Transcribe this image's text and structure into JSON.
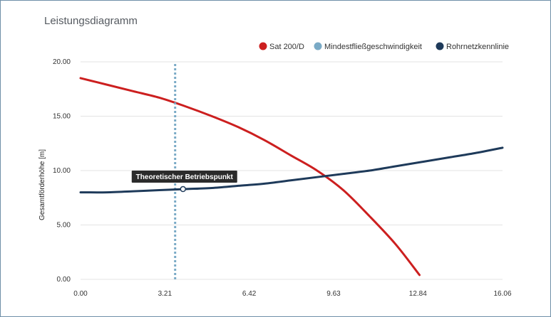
{
  "window": {
    "title": "Leistungsdiagramm"
  },
  "chart_data": {
    "type": "line",
    "title": "Leistungsdiagramm",
    "xlabel": "",
    "ylabel": "Gesamtförderhöhe [m]",
    "xlim": [
      0,
      16.06
    ],
    "ylim": [
      0,
      20
    ],
    "x_ticks": [
      "0.00",
      "3.21",
      "6.42",
      "9.63",
      "12.84",
      "16.06"
    ],
    "y_ticks": [
      "0.00",
      "5.00",
      "10.00",
      "15.00",
      "20.00"
    ],
    "grid": "horizontal",
    "legend_position": "top-right",
    "series": [
      {
        "name": "Sat 200/D",
        "color": "#cc1f1f",
        "x": [
          0,
          1,
          2,
          3,
          4,
          5,
          6,
          7,
          8,
          9,
          10,
          11,
          12,
          12.9
        ],
        "y": [
          18.5,
          17.9,
          17.3,
          16.7,
          15.9,
          15.0,
          14.0,
          12.8,
          11.4,
          10.0,
          8.2,
          5.8,
          3.2,
          0.4
        ]
      },
      {
        "name": "Mindestfließgeschwindigkeit",
        "color": "#7aaac6",
        "style": "dotted-vertical",
        "x": [
          3.6,
          3.6
        ],
        "y": [
          0,
          20
        ]
      },
      {
        "name": "Rohrnetzkennlinie",
        "color": "#1e3a5a",
        "x": [
          0,
          1,
          2,
          3,
          4,
          5,
          6,
          7,
          8,
          9,
          10,
          11,
          12,
          13,
          14,
          15,
          16.06
        ],
        "y": [
          8.0,
          8.0,
          8.1,
          8.2,
          8.3,
          8.4,
          8.6,
          8.8,
          9.1,
          9.4,
          9.7,
          10.0,
          10.4,
          10.8,
          11.2,
          11.6,
          12.1
        ]
      }
    ],
    "annotations": [
      {
        "label": "Theoretischer Betriebspunkt",
        "x": 3.9,
        "y": 8.3
      }
    ]
  }
}
